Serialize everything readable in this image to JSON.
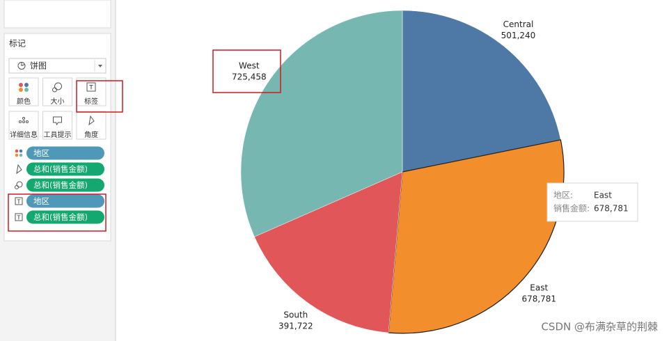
{
  "marks_panel": {
    "title": "标记",
    "mark_type": "饼图",
    "buttons": [
      "颜色",
      "大小",
      "标签",
      "详细信息",
      "工具提示",
      "角度"
    ],
    "pills": [
      "地区",
      "总和(销售金额)",
      "总和(销售金额)",
      "地区",
      "总和(销售金额)"
    ]
  },
  "chart_data": {
    "type": "pie",
    "categories": [
      "Central",
      "East",
      "South",
      "West"
    ],
    "values": [
      501240,
      678781,
      391722,
      725458
    ],
    "value_labels": [
      "501,240",
      "678,781",
      "391,722",
      "725,458"
    ],
    "colors": [
      "#4e79a7",
      "#f28e2b",
      "#e15759",
      "#76b7b2"
    ]
  },
  "tooltip": {
    "rows": [
      [
        "地区:",
        "East"
      ],
      [
        "销售金额:",
        "678,781"
      ]
    ]
  },
  "watermark": "CSDN @布满杂草的荆棘"
}
